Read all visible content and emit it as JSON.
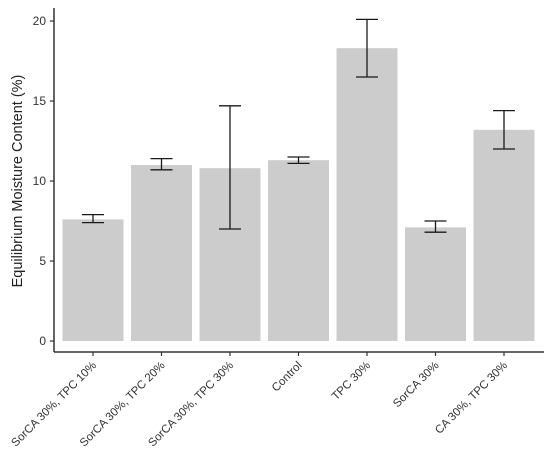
{
  "chart_data": {
    "type": "bar",
    "title": "",
    "xlabel": "",
    "ylabel": "Equilibrium Moisture Content (%)",
    "categories": [
      "SorCA 30%, TPC 10%",
      "SorCA 30%, TPC 20%",
      "SorCA 30%, TPC 30%",
      "Control",
      "TPC 30%",
      "SorCA 30%",
      "CA 30%, TPC 30%"
    ],
    "values": [
      7.6,
      11.0,
      10.8,
      11.3,
      18.3,
      7.1,
      13.2
    ],
    "error_low": [
      7.4,
      10.7,
      7.0,
      11.1,
      16.5,
      6.8,
      12.0
    ],
    "error_high": [
      7.9,
      11.4,
      14.7,
      11.5,
      20.1,
      7.5,
      14.4
    ],
    "ylim": [
      0,
      21
    ],
    "yticks": [
      0,
      5,
      10,
      15,
      20
    ],
    "grid": false,
    "bar_color": "#cccccc",
    "error_bar_color": "#1a1a1a",
    "axis_color": "#333333"
  }
}
